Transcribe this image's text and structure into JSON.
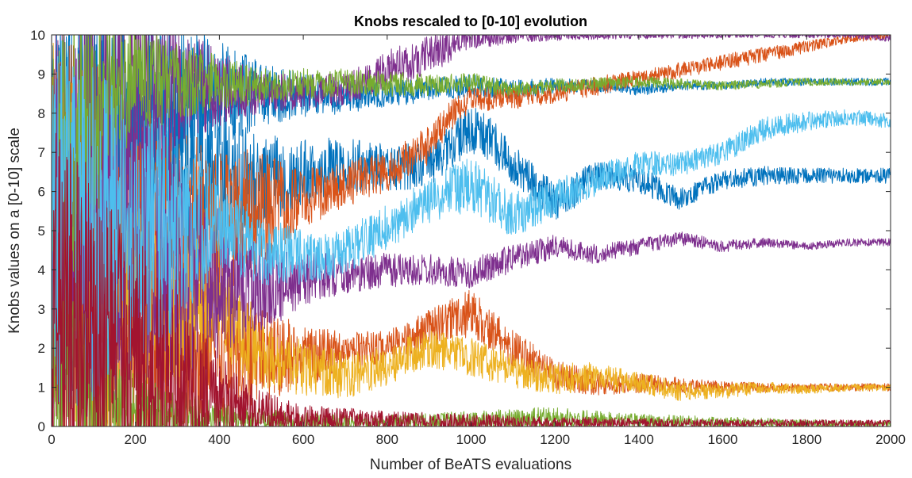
{
  "chart_data": {
    "type": "line",
    "title": "Knobs rescaled to [0-10] evolution",
    "xlabel": "Number of BeATS evaluations",
    "ylabel": "Knobs values on a [0-10] scale",
    "xlim": [
      0,
      2000
    ],
    "ylim": [
      0,
      10
    ],
    "xticks": [
      0,
      200,
      400,
      600,
      800,
      1000,
      1200,
      1400,
      1600,
      1800,
      2000
    ],
    "yticks": [
      0,
      1,
      2,
      3,
      4,
      5,
      6,
      7,
      8,
      9,
      10
    ],
    "grid": false,
    "box": true,
    "samples": 2000,
    "series": [
      {
        "color": "#0072BD",
        "x": [
          0,
          100,
          250,
          400,
          500,
          600,
          700,
          800,
          900,
          1000,
          1050,
          1100,
          1200,
          1300,
          1400,
          1500,
          1600,
          1700,
          1800,
          1900,
          2000
        ],
        "y": [
          5,
          6,
          6.5,
          6.2,
          6.3,
          6.5,
          6.7,
          6.6,
          6.7,
          7.6,
          7.3,
          6.7,
          5.7,
          6.4,
          6.3,
          5.8,
          6.3,
          6.4,
          6.4,
          6.4,
          6.4
        ],
        "noise": [
          5,
          4.5,
          3,
          1.8,
          1.2,
          0.9,
          0.7,
          0.6,
          0.6,
          0.6,
          0.6,
          0.5,
          0.5,
          0.4,
          0.35,
          0.3,
          0.25,
          0.25,
          0.2,
          0.2,
          0.2
        ]
      },
      {
        "color": "#0072BD",
        "x": [
          0,
          100,
          300,
          500,
          700,
          900,
          1000,
          1100,
          1200,
          1300,
          1400,
          1500,
          1600,
          1700,
          1800,
          1900,
          2000
        ],
        "y": [
          5,
          7,
          8.4,
          8.5,
          8.4,
          8.6,
          8.7,
          8.6,
          8.7,
          8.7,
          8.6,
          8.7,
          8.7,
          8.8,
          8.8,
          8.8,
          8.8
        ],
        "noise": [
          5,
          4,
          2,
          0.8,
          0.4,
          0.3,
          0.3,
          0.25,
          0.2,
          0.15,
          0.15,
          0.12,
          0.1,
          0.1,
          0.1,
          0.1,
          0.1
        ]
      },
      {
        "color": "#D95319",
        "x": [
          0,
          100,
          300,
          500,
          600,
          700,
          800,
          900,
          950,
          1000,
          1100,
          1200,
          1300,
          1400,
          1500,
          1600,
          1700,
          1800,
          1900,
          2000
        ],
        "y": [
          5,
          5,
          4.5,
          5.5,
          5.8,
          6.2,
          6.5,
          7.2,
          7.9,
          8.4,
          8.4,
          8.5,
          8.7,
          8.9,
          9.1,
          9.3,
          9.5,
          9.7,
          9.9,
          10
        ],
        "noise": [
          5,
          4.5,
          3,
          1.5,
          0.8,
          0.6,
          0.5,
          0.5,
          0.4,
          0.35,
          0.3,
          0.25,
          0.25,
          0.2,
          0.2,
          0.2,
          0.2,
          0.15,
          0.1,
          0.1
        ]
      },
      {
        "color": "#D95319",
        "x": [
          0,
          100,
          300,
          500,
          600,
          700,
          800,
          900,
          1000,
          1100,
          1200,
          1300,
          1400,
          1500,
          1600,
          1700,
          1800,
          1900,
          2000
        ],
        "y": [
          5,
          3,
          2,
          1.8,
          1.8,
          1.9,
          2,
          2.5,
          2.9,
          2,
          1.3,
          1.1,
          1.1,
          1.05,
          1,
          1,
          1,
          1,
          1
        ],
        "noise": [
          5,
          4.5,
          2.5,
          1.2,
          0.8,
          0.5,
          0.45,
          0.5,
          0.6,
          0.5,
          0.4,
          0.3,
          0.25,
          0.2,
          0.15,
          0.12,
          0.1,
          0.1,
          0.1
        ]
      },
      {
        "color": "#EDB120",
        "x": [
          0,
          100,
          200,
          300,
          400,
          500,
          600,
          700,
          800,
          900,
          1000,
          1100,
          1200,
          1300,
          1400,
          1500,
          1600,
          1700,
          1800,
          1900,
          2000
        ],
        "y": [
          5,
          3,
          3.5,
          3,
          3.3,
          1.8,
          1.5,
          1.3,
          1.6,
          2,
          1.8,
          1.4,
          1.2,
          1.3,
          1.1,
          0.9,
          0.9,
          1,
          0.95,
          1,
          1
        ],
        "noise": [
          5,
          4.5,
          2.5,
          2,
          1.5,
          0.9,
          0.7,
          0.6,
          0.55,
          0.5,
          0.5,
          0.45,
          0.4,
          0.35,
          0.3,
          0.25,
          0.2,
          0.15,
          0.12,
          0.1,
          0.1
        ]
      },
      {
        "color": "#7E2F8E",
        "x": [
          0,
          100,
          200,
          300,
          500,
          700,
          800,
          900,
          1000,
          1100,
          1200,
          1300,
          1400,
          1500,
          1600,
          1700,
          1800,
          1900,
          2000
        ],
        "y": [
          5,
          7,
          8.5,
          8.7,
          8.5,
          8.6,
          9.1,
          9.5,
          9.9,
          10,
          10,
          10,
          10,
          10,
          10,
          10,
          10,
          10,
          9.9
        ],
        "noise": [
          5,
          4.5,
          3,
          1.5,
          0.5,
          0.4,
          0.5,
          0.5,
          0.3,
          0.2,
          0.15,
          0.12,
          0.1,
          0.1,
          0.08,
          0.08,
          0.08,
          0.08,
          0.08
        ]
      },
      {
        "color": "#7E2F8E",
        "x": [
          0,
          100,
          300,
          450,
          550,
          600,
          700,
          800,
          900,
          1000,
          1100,
          1200,
          1300,
          1400,
          1500,
          1600,
          1700,
          1800,
          1900,
          2000
        ],
        "y": [
          5,
          5,
          4,
          3.6,
          3.6,
          3.8,
          3.9,
          4,
          4,
          3.9,
          4.3,
          4.6,
          4.4,
          4.6,
          4.8,
          4.6,
          4.7,
          4.6,
          4.7,
          4.7
        ],
        "noise": [
          5,
          4.5,
          3,
          1.5,
          0.9,
          0.7,
          0.5,
          0.45,
          0.4,
          0.4,
          0.35,
          0.3,
          0.25,
          0.2,
          0.18,
          0.15,
          0.12,
          0.1,
          0.1,
          0.1
        ]
      },
      {
        "color": "#77AC30",
        "x": [
          0,
          100,
          200,
          300,
          500,
          700,
          900,
          1000,
          1100,
          1200,
          1400,
          1600,
          1800,
          2000
        ],
        "y": [
          5,
          8,
          9,
          8.8,
          8.7,
          8.8,
          8.7,
          8.8,
          8.6,
          8.7,
          8.8,
          8.7,
          8.8,
          8.8
        ],
        "noise": [
          5,
          3,
          1.5,
          1,
          0.45,
          0.35,
          0.3,
          0.25,
          0.2,
          0.18,
          0.15,
          0.12,
          0.1,
          0.08
        ]
      },
      {
        "color": "#77AC30",
        "x": [
          0,
          100,
          250,
          400,
          600,
          800,
          1000,
          1200,
          1400,
          1600,
          1800,
          2000
        ],
        "y": [
          2,
          0.6,
          0.3,
          0.2,
          0.12,
          0.1,
          0.15,
          0.2,
          0.12,
          0.1,
          0.08,
          0.05
        ],
        "noise": [
          4,
          2,
          0.8,
          0.4,
          0.25,
          0.2,
          0.25,
          0.3,
          0.2,
          0.15,
          0.1,
          0.08
        ]
      },
      {
        "color": "#4DBEEE",
        "x": [
          0,
          100,
          300,
          400,
          500,
          600,
          650,
          700,
          800,
          900,
          1000,
          1100,
          1200,
          1300,
          1400,
          1500,
          1600,
          1700,
          1800,
          1900,
          2000
        ],
        "y": [
          5,
          5,
          5,
          5.2,
          4.5,
          4.3,
          4.3,
          4.5,
          5.1,
          5.8,
          6.2,
          5.4,
          5.8,
          6.3,
          6.7,
          6.7,
          7,
          7.6,
          7.8,
          7.9,
          7.8
        ],
        "noise": [
          5,
          4.5,
          2.5,
          1.2,
          0.9,
          0.7,
          0.6,
          0.6,
          0.6,
          0.6,
          0.7,
          0.6,
          0.5,
          0.4,
          0.35,
          0.3,
          0.3,
          0.3,
          0.25,
          0.2,
          0.2
        ]
      },
      {
        "color": "#A2142F",
        "x": [
          0,
          100,
          200,
          300,
          400,
          500,
          600,
          800,
          1000,
          1200,
          1400,
          1600,
          1800,
          2000
        ],
        "y": [
          3,
          2,
          1.5,
          1,
          0.6,
          0.35,
          0.2,
          0.15,
          0.12,
          0.1,
          0.1,
          0.08,
          0.08,
          0.08
        ],
        "noise": [
          5,
          4.5,
          3.5,
          2.5,
          1.2,
          0.6,
          0.35,
          0.25,
          0.2,
          0.15,
          0.12,
          0.1,
          0.1,
          0.08
        ]
      }
    ]
  }
}
